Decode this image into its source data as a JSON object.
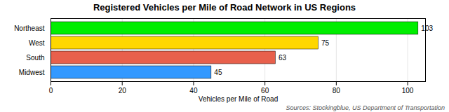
{
  "chart_data": {
    "type": "bar",
    "orientation": "horizontal",
    "title": "Registered Vehicles per Mile of Road Network in US Regions",
    "categories": [
      "Midwest",
      "South",
      "West",
      "Northeast"
    ],
    "values": [
      45,
      63,
      75,
      103
    ],
    "colors": [
      "#3399ff",
      "#e8604c",
      "#ffd700",
      "#00ee00"
    ],
    "xlabel": "Vehicles per Mile of Road",
    "xlim": [
      0,
      105
    ],
    "xticks": [
      0,
      20,
      40,
      60,
      80,
      100
    ],
    "grid": true,
    "data_labels": true,
    "annotations": [
      "Sources: Stockingblue, US Department of Transportation"
    ]
  }
}
